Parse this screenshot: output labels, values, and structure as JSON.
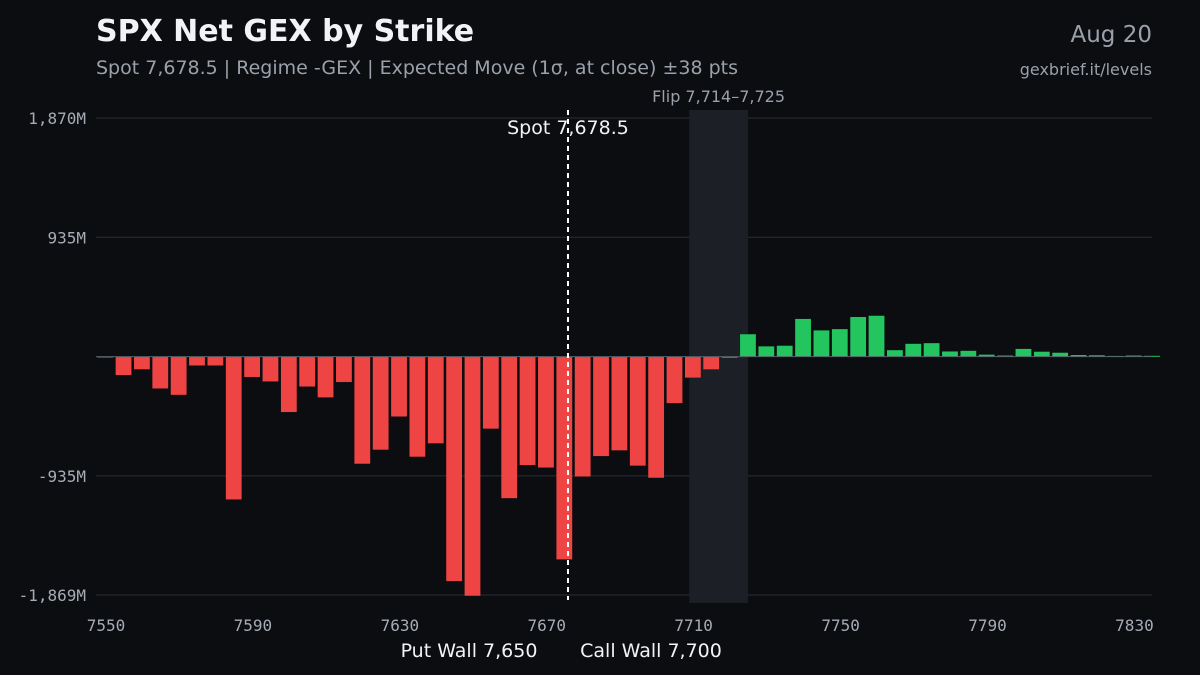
{
  "header": {
    "title": "SPX Net GEX by Strike",
    "subtitle": "Spot 7,678.5 | Regime -GEX | Expected Move (1σ, at close) ±38 pts",
    "date": "Aug 20",
    "site": "gexbrief.it/levels"
  },
  "colors": {
    "background": "#0b0d10",
    "negative": "#ef4444",
    "positive": "#22c55e",
    "grid": "#2a2f36",
    "flip_band": "#1c2026",
    "spot_line": "#ffffff"
  },
  "chart_data": {
    "type": "bar",
    "title": "SPX Net GEX by Strike",
    "x": [
      7550,
      7555,
      7560,
      7565,
      7570,
      7575,
      7580,
      7585,
      7590,
      7595,
      7600,
      7605,
      7610,
      7615,
      7620,
      7625,
      7630,
      7635,
      7640,
      7645,
      7650,
      7655,
      7660,
      7665,
      7670,
      7675,
      7680,
      7685,
      7690,
      7695,
      7700,
      7705,
      7710,
      7715,
      7720,
      7725,
      7730,
      7735,
      7740,
      7745,
      7750,
      7755,
      7760,
      7765,
      7770,
      7775,
      7780,
      7785,
      7790,
      7795,
      7800,
      7805,
      7810,
      7815,
      7820,
      7825,
      7830,
      7835
    ],
    "values_m": [
      -5,
      -145,
      -100,
      -250,
      -300,
      -70,
      -70,
      -1120,
      -160,
      -195,
      -435,
      -235,
      -320,
      -200,
      -840,
      -730,
      -470,
      -785,
      -680,
      -1760,
      -1875,
      -565,
      -1110,
      -850,
      -870,
      -1590,
      -940,
      -780,
      -735,
      -855,
      -950,
      -365,
      -165,
      -100,
      -10,
      175,
      80,
      85,
      295,
      205,
      215,
      310,
      320,
      50,
      100,
      105,
      40,
      45,
      15,
      8,
      60,
      38,
      30,
      12,
      10,
      5,
      8,
      6
    ],
    "x_ticks": [
      7550,
      7590,
      7630,
      7670,
      7710,
      7750,
      7790,
      7830
    ],
    "x_tick_labels": [
      "7550",
      "7590",
      "7630",
      "7670",
      "7710",
      "7750",
      "7790",
      "7830"
    ],
    "y_ticks": [
      1870,
      935,
      -935,
      -1869
    ],
    "y_tick_labels": [
      "1,870M",
      "935M",
      "-935M",
      "-1,869M"
    ],
    "ylim": [
      -1869,
      1870
    ],
    "xlim": [
      7550,
      7837.5
    ],
    "bar_width": 5,
    "spot": 7678.5,
    "spot_label": "Spot 7,678.5",
    "flip_range": [
      7714,
      7725
    ],
    "flip_label": "Flip 7,714–7,725",
    "put_wall_label": "Put Wall 7,650",
    "call_wall_label": "Call Wall 7,700",
    "grid": true
  }
}
